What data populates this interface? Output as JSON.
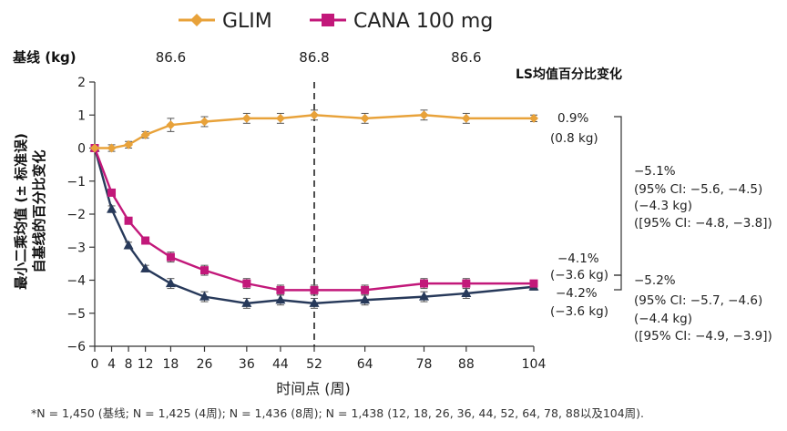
{
  "chart_data": {
    "type": "line",
    "legend": [
      {
        "name": "GLIM",
        "color": "#e8a23a",
        "marker": "diamond"
      },
      {
        "name": "CANA 100 mg",
        "color": "#c2187a",
        "marker": "square"
      }
    ],
    "x": [
      0,
      4,
      8,
      12,
      18,
      26,
      36,
      44,
      52,
      64,
      78,
      88,
      104
    ],
    "x_tick_labels": [
      "0",
      "4",
      "8",
      "12",
      "18",
      "26",
      "36",
      "44",
      "52",
      "64",
      "78",
      "88",
      "104"
    ],
    "xlabel": "时间点 (周)",
    "ylabel_line1": "最小二乘均值 (± 标准误)",
    "ylabel_line2": "自基线的百分比变化",
    "ylim": [
      -6,
      2
    ],
    "y_ticks": [
      2,
      1,
      0,
      -1,
      -2,
      -3,
      -4,
      -5,
      -6
    ],
    "y_tick_labels": [
      "2",
      "1",
      "0",
      "−1",
      "−2",
      "−3",
      "−4",
      "−5",
      "−6"
    ],
    "reference_line_x": 52,
    "baseline": {
      "title": "基线 (kg)",
      "values": [
        {
          "x": 18,
          "label": "86.6"
        },
        {
          "x": 52,
          "label": "86.8"
        },
        {
          "x": 88,
          "label": "86.6"
        }
      ]
    },
    "series": [
      {
        "name": "GLIM",
        "color": "#e8a23a",
        "marker": "diamond",
        "values": [
          0,
          0,
          0.1,
          0.4,
          0.7,
          0.8,
          0.9,
          0.9,
          1.0,
          0.9,
          1.0,
          0.9,
          0.9
        ],
        "errors": [
          0,
          0.1,
          0.1,
          0.1,
          0.2,
          0.15,
          0.15,
          0.15,
          0.15,
          0.15,
          0.15,
          0.15,
          0.1
        ]
      },
      {
        "name": "CANA 100 mg",
        "color": "#c2187a",
        "marker": "square",
        "values": [
          0,
          -1.35,
          -2.2,
          -2.8,
          -3.3,
          -3.7,
          -4.1,
          -4.3,
          -4.3,
          -4.3,
          -4.1,
          -4.1,
          -4.1
        ],
        "errors": [
          0,
          0.1,
          0.1,
          0.1,
          0.15,
          0.15,
          0.15,
          0.15,
          0.15,
          0.15,
          0.15,
          0.15,
          0.1
        ]
      },
      {
        "name": "",
        "color": "#27395a",
        "marker": "triangle",
        "values": [
          0,
          -1.85,
          -2.95,
          -3.65,
          -4.1,
          -4.5,
          -4.7,
          -4.6,
          -4.7,
          -4.6,
          -4.5,
          -4.4,
          -4.2
        ],
        "errors": [
          0,
          0.1,
          0.1,
          0.1,
          0.15,
          0.15,
          0.15,
          0.15,
          0.15,
          0.15,
          0.15,
          0.15,
          0.1
        ]
      }
    ],
    "ls_title": "LS均值百分比变化",
    "end_labels": {
      "glim": [
        "0.9%",
        "(0.8 kg)"
      ],
      "cana": [
        "−4.1%",
        "(−3.6 kg)"
      ],
      "third": [
        "−4.2%",
        "(−3.6 kg)"
      ]
    },
    "comparisons": {
      "upper": [
        "−5.1%",
        "(95% CI: −5.6, −4.5)",
        "(−4.3 kg)",
        "([95% CI: −4.8, −3.8])"
      ],
      "lower": [
        "−5.2%",
        "(95% CI: −5.7, −4.6)",
        "(−4.4 kg)",
        "([95% CI: −4.9, −3.9])"
      ]
    },
    "footnote": "*N = 1,450 (基线; N = 1,425 (4周); N = 1,436 (8周); N = 1,438 (12, 18, 26, 36, 44, 52, 64, 78, 88以及104周)."
  }
}
